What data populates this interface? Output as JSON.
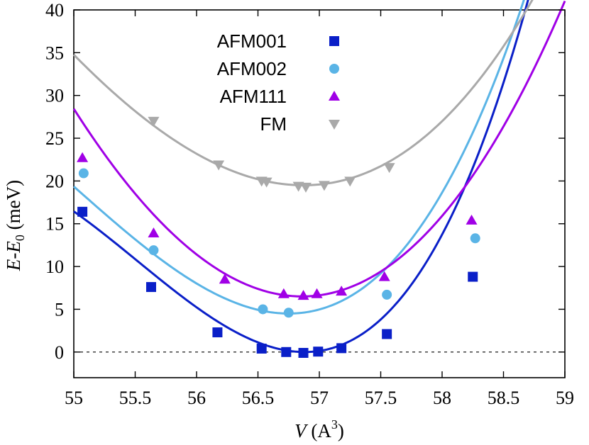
{
  "chart_data": {
    "type": "scatter",
    "ylabel_parts": {
      "e": "E",
      "dash": "-",
      "e0": "E",
      "sub": "0",
      "unit": " (meV)"
    },
    "xlabel_parts": {
      "v": "V",
      "unit_open": " (A",
      "sup": "3",
      "unit_close": ")"
    },
    "xlim": [
      55,
      59
    ],
    "ylim": [
      -3,
      40
    ],
    "xticks": [
      55,
      55.5,
      56,
      56.5,
      57,
      57.5,
      58,
      58.5,
      59
    ],
    "xtick_labels": [
      "55",
      "55.5",
      "56",
      "56.5",
      "57",
      "57.5",
      "58",
      "58.5",
      "59"
    ],
    "yticks": [
      0,
      5,
      10,
      15,
      20,
      25,
      30,
      35,
      40
    ],
    "ytick_labels": [
      "0",
      "5",
      "10",
      "15",
      "20",
      "25",
      "30",
      "35",
      "40"
    ],
    "reference_line_y": 0,
    "legend_position": "top-center",
    "series": [
      {
        "name": "AFM001",
        "marker": "square",
        "color": "#0a1fc8",
        "fit": {
          "x0": 56.88,
          "c": 0.0,
          "a": 8.6,
          "b": 2.1
        },
        "points": [
          [
            55.07,
            16.4
          ],
          [
            55.63,
            7.6
          ],
          [
            56.17,
            2.3
          ],
          [
            56.53,
            0.4
          ],
          [
            56.73,
            0.0
          ],
          [
            56.87,
            -0.1
          ],
          [
            56.99,
            0.05
          ],
          [
            57.18,
            0.45
          ],
          [
            57.55,
            2.1
          ],
          [
            58.25,
            8.8
          ]
        ]
      },
      {
        "name": "AFM002",
        "marker": "circle",
        "color": "#5ab4e6",
        "fit": {
          "x0": 56.75,
          "c": 4.5,
          "a": 7.3,
          "b": 1.4
        },
        "points": [
          [
            55.08,
            20.9
          ],
          [
            55.65,
            11.9
          ],
          [
            56.54,
            5.0
          ],
          [
            56.75,
            4.6
          ],
          [
            57.55,
            6.7
          ],
          [
            58.27,
            13.3
          ]
        ]
      },
      {
        "name": "AFM111",
        "marker": "triangle-up",
        "color": "#a000e6",
        "fit": {
          "x0": 56.86,
          "c": 6.5,
          "a": 6.9,
          "b": 0.3
        },
        "points": [
          [
            55.07,
            22.7
          ],
          [
            55.65,
            13.9
          ],
          [
            56.23,
            8.5
          ],
          [
            56.71,
            6.8
          ],
          [
            56.87,
            6.6
          ],
          [
            56.98,
            6.8
          ],
          [
            57.18,
            7.1
          ],
          [
            57.53,
            8.8
          ],
          [
            58.24,
            15.4
          ]
        ]
      },
      {
        "name": "FM",
        "marker": "triangle-down",
        "color": "#a9a9a9",
        "fit": {
          "x0": 56.87,
          "c": 19.5,
          "a": 5.3,
          "b": 0.5
        },
        "points": [
          [
            55.65,
            27.0
          ],
          [
            56.18,
            21.9
          ],
          [
            56.53,
            20.0
          ],
          [
            56.57,
            19.9
          ],
          [
            56.83,
            19.4
          ],
          [
            56.89,
            19.3
          ],
          [
            57.04,
            19.5
          ],
          [
            57.25,
            20.0
          ],
          [
            57.57,
            21.6
          ]
        ]
      }
    ]
  }
}
